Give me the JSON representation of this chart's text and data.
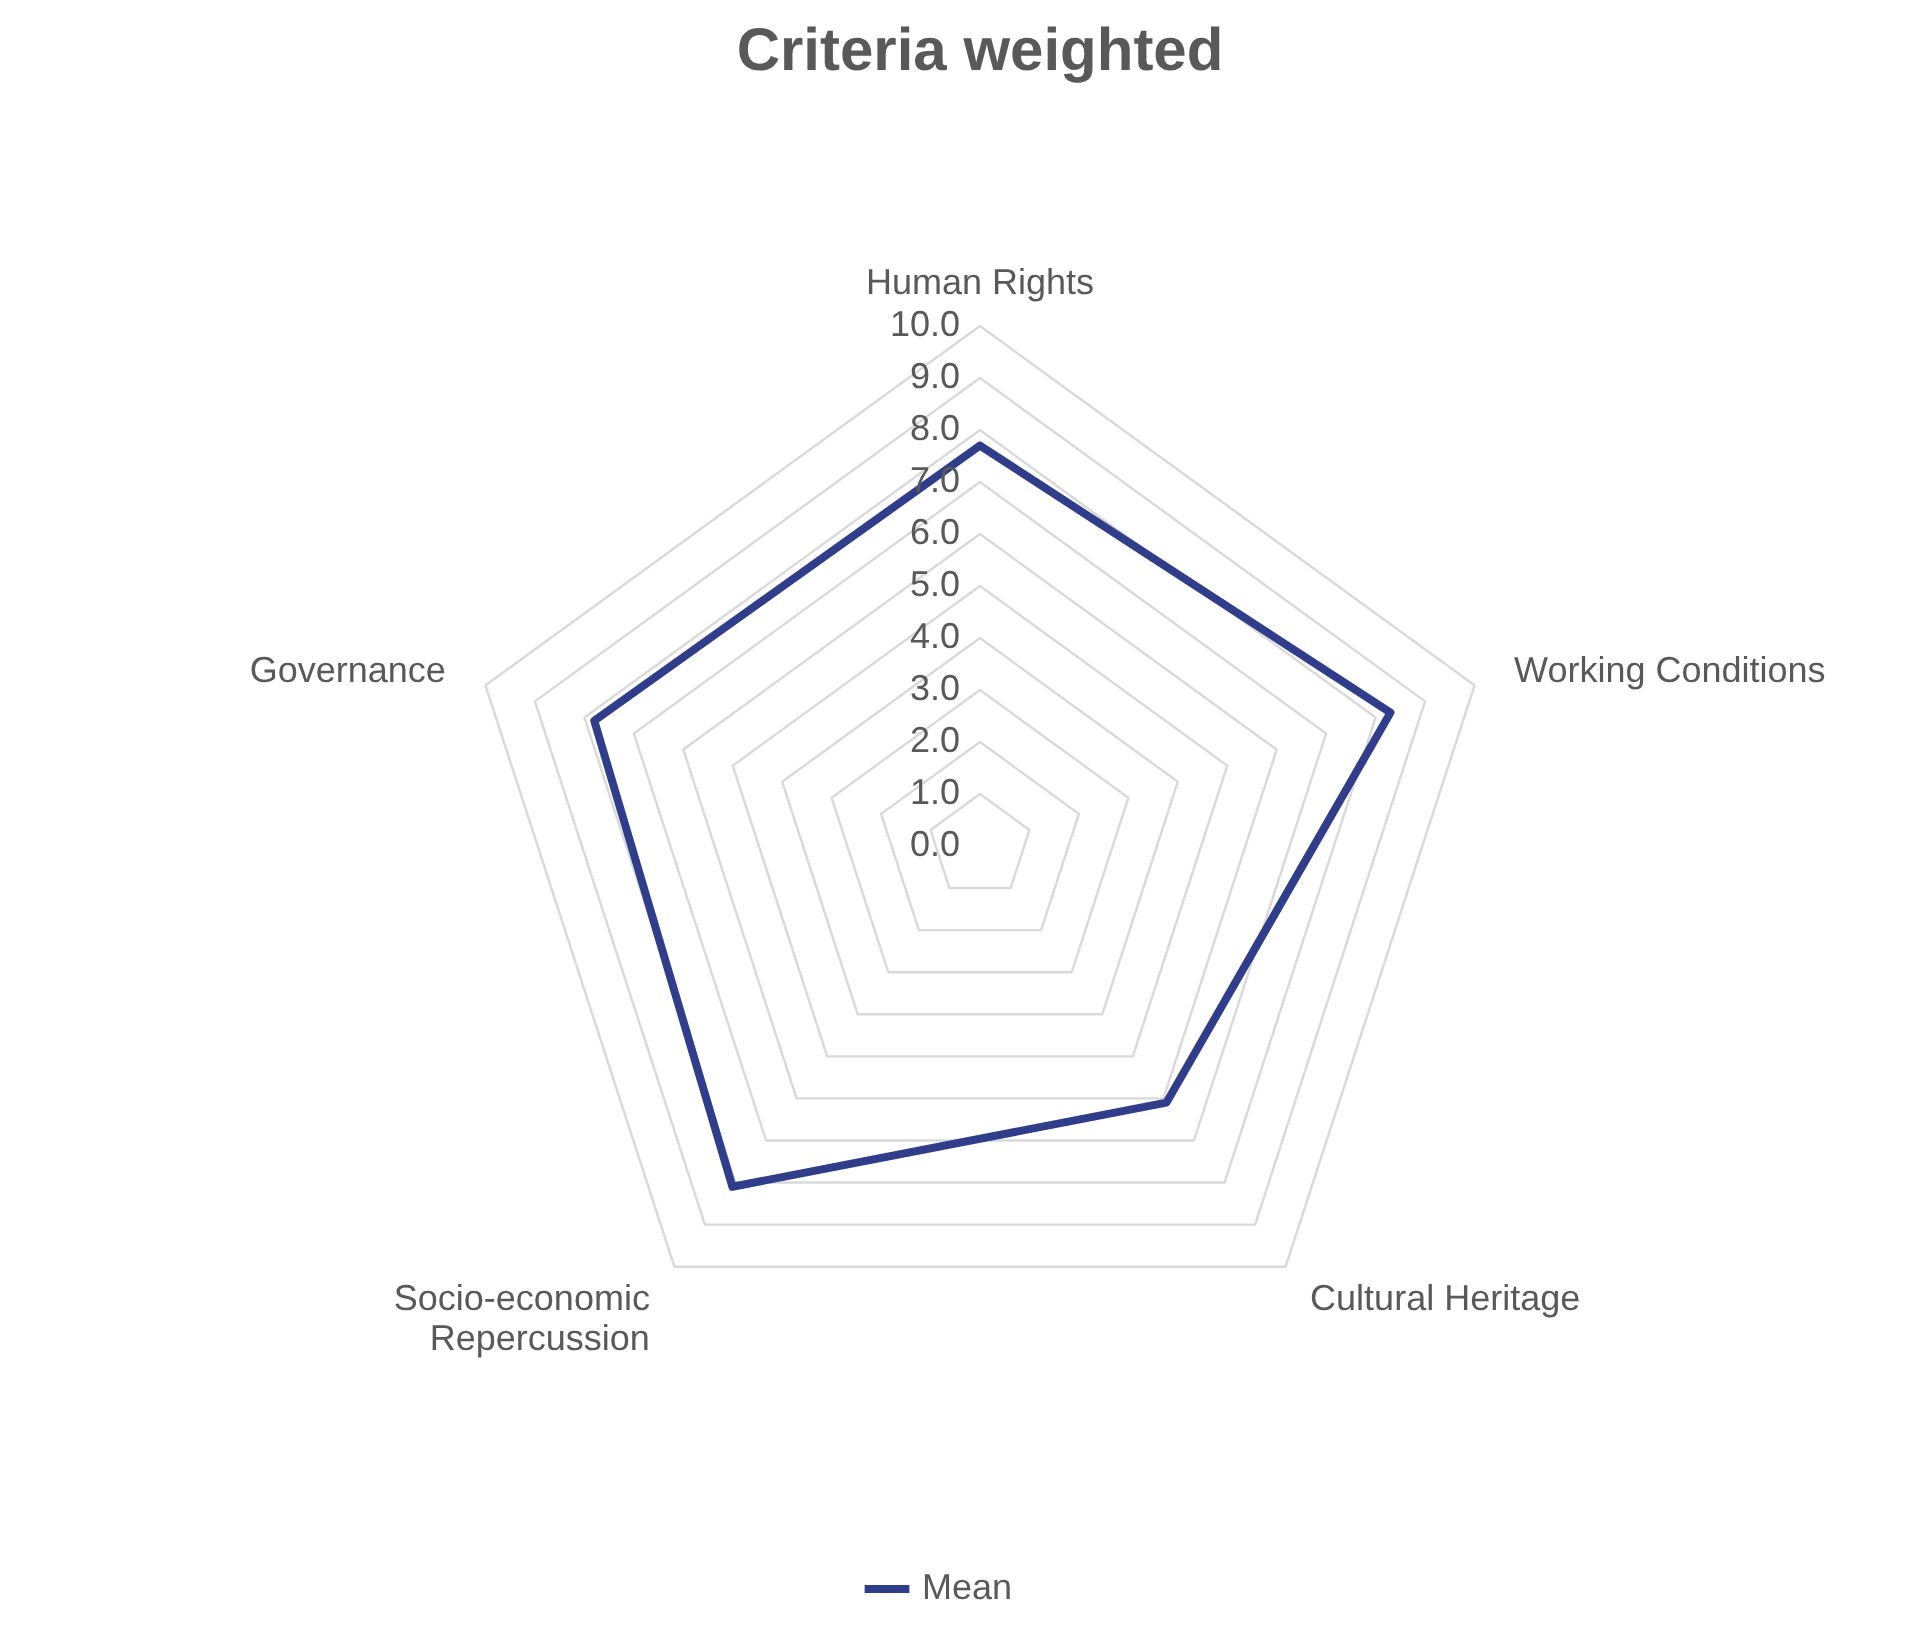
{
  "chart_data": {
    "type": "radar",
    "title": "Criteria weighted",
    "categories": [
      "Human Rights",
      "Working Conditions",
      "Cultural Heritage",
      "Socio-economic\nRepercussion",
      "Governance"
    ],
    "series": [
      {
        "name": "Mean",
        "color": "#2f3d8a",
        "values": [
          7.7,
          8.3,
          6.1,
          8.1,
          7.8
        ]
      }
    ],
    "ylim": [
      0,
      10
    ],
    "yticks": [
      {
        "value": 0,
        "label": "0.0"
      },
      {
        "value": 1,
        "label": "1.0"
      },
      {
        "value": 2,
        "label": "2.0"
      },
      {
        "value": 3,
        "label": "3.0"
      },
      {
        "value": 4,
        "label": "4.0"
      },
      {
        "value": 5,
        "label": "5.0"
      },
      {
        "value": 6,
        "label": "6.0"
      },
      {
        "value": 7,
        "label": "7.0"
      },
      {
        "value": 8,
        "label": "8.0"
      },
      {
        "value": 9,
        "label": "9.0"
      },
      {
        "value": 10,
        "label": "10.0"
      }
    ],
    "grid": true,
    "legend": "bottom"
  }
}
